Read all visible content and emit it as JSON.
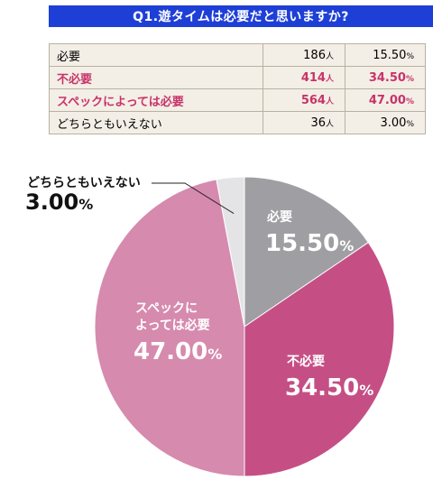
{
  "question": "Q1.遊タイムは必要だと思いますか?",
  "unit_count": "人",
  "unit_percent": "%",
  "table": [
    {
      "label": "必要",
      "count": "186",
      "percent": "15.50"
    },
    {
      "label": "不必要",
      "count": "414",
      "percent": "34.50"
    },
    {
      "label": "スペックによっては必要",
      "count": "564",
      "percent": "47.00"
    },
    {
      "label": "どちらともいえない",
      "count": "36",
      "percent": "3.00"
    }
  ],
  "chart_data": {
    "type": "pie",
    "title": "Q1.遊タイムは必要だと思いますか?",
    "slices": [
      {
        "label_lines": [
          "必要"
        ],
        "value": 15.5,
        "value_text": "15.50",
        "color": "#9f9fa3"
      },
      {
        "label_lines": [
          "不必要"
        ],
        "value": 34.5,
        "value_text": "34.50",
        "color": "#c54f85"
      },
      {
        "label_lines": [
          "スペックに",
          "よっては必要"
        ],
        "value": 47.0,
        "value_text": "47.00",
        "color": "#d68aae"
      },
      {
        "label_lines": [
          "どちらともいえない"
        ],
        "value": 3.0,
        "value_text": "3.00",
        "color": "#e4e4e6"
      }
    ],
    "start": "top",
    "direction": "clockwise"
  }
}
